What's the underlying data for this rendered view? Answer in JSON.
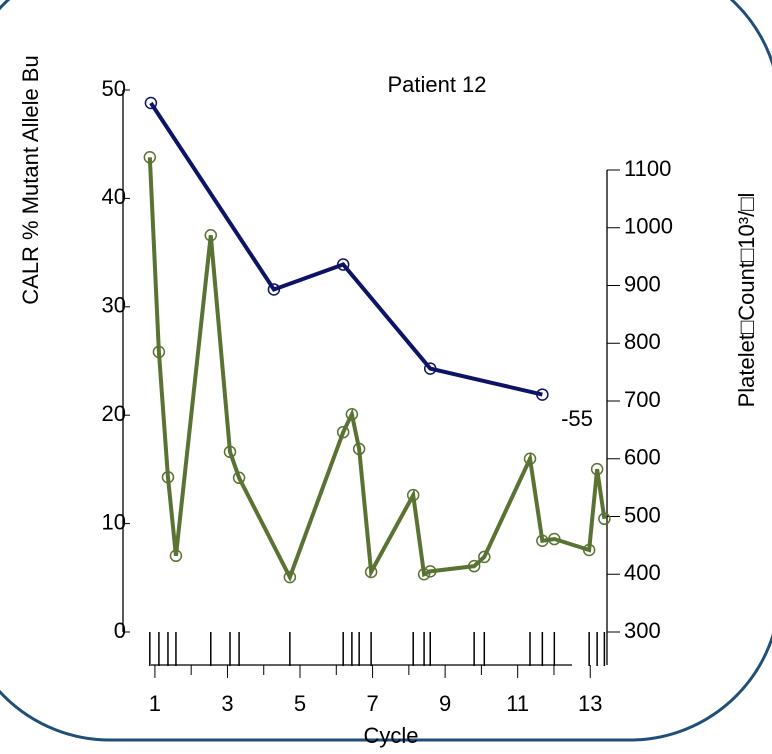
{
  "chart_data": {
    "type": "line",
    "title": "Patient 12",
    "x_label": "Cycle",
    "y_label": "CALR % Mutant Allele Bu",
    "y2_label": "Platelet□Count□10³/□l",
    "annotation": "-55",
    "xlim": [
      -0.1,
      13.6
    ],
    "xticks": [
      1,
      3,
      5,
      7,
      9,
      11,
      13
    ],
    "xminor_ticks": [
      2,
      4,
      6,
      8,
      10,
      12
    ],
    "ylim": [
      0,
      50
    ],
    "yticks": [
      0,
      10,
      20,
      30,
      40,
      50
    ],
    "y2lim": [
      300,
      1100
    ],
    "y2ticks": [
      300,
      400,
      500,
      600,
      700,
      800,
      900,
      1000,
      1100
    ],
    "series": [
      {
        "name": "CALR",
        "color": "#0d1466",
        "x": [
          0.89,
          4.28,
          6.19,
          8.59,
          11.68
        ],
        "values": [
          48.8,
          31.6,
          33.9,
          24.3,
          21.9
        ]
      },
      {
        "name": "Platelet",
        "color": "#5a7232",
        "axis": "y2",
        "x": [
          0.86,
          1.11,
          1.36,
          1.58,
          2.54,
          3.07,
          3.32,
          4.72,
          6.19,
          6.43,
          6.63,
          6.96,
          8.12,
          8.42,
          8.59,
          9.8,
          10.08,
          11.34,
          11.68,
          12.01,
          12.97,
          13.19,
          13.39
        ],
        "values": [
          1122,
          785,
          568,
          432,
          987,
          612,
          567,
          395,
          646,
          677,
          617,
          404,
          537,
          400,
          405,
          414,
          430,
          600,
          458,
          461,
          442,
          582,
          496
        ]
      }
    ]
  }
}
